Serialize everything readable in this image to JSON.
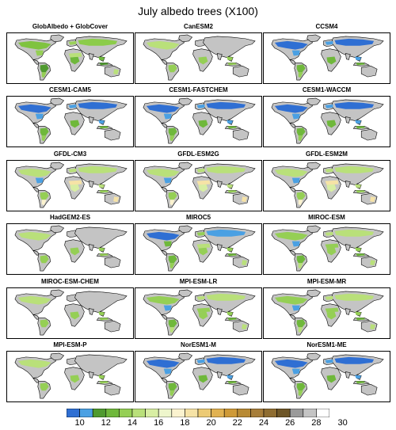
{
  "title": "July albedo trees (X100)",
  "panels": [
    {
      "label": "GlobAlbedo + GlobCover",
      "scheme": "obs"
    },
    {
      "label": "CanESM2",
      "scheme": "sparse"
    },
    {
      "label": "CCSM4",
      "scheme": "blue"
    },
    {
      "label": "CESM1-CAM5",
      "scheme": "blue"
    },
    {
      "label": "CESM1-FASTCHEM",
      "scheme": "blue"
    },
    {
      "label": "CESM1-WACCM",
      "scheme": "blue"
    },
    {
      "label": "GFDL-CM3",
      "scheme": "yellow"
    },
    {
      "label": "GFDL-ESM2G",
      "scheme": "yellow"
    },
    {
      "label": "GFDL-ESM2M",
      "scheme": "yellow"
    },
    {
      "label": "HadGEM2-ES",
      "scheme": "sparse"
    },
    {
      "label": "MIROC5",
      "scheme": "mixed"
    },
    {
      "label": "MIROC-ESM",
      "scheme": "green"
    },
    {
      "label": "MIROC-ESM-CHEM",
      "scheme": "sparse"
    },
    {
      "label": "MPI-ESM-LR",
      "scheme": "green"
    },
    {
      "label": "MPI-ESM-MR",
      "scheme": "green"
    },
    {
      "label": "MPI-ESM-P",
      "scheme": "sparse"
    },
    {
      "label": "NorESM1-M",
      "scheme": "blue"
    },
    {
      "label": "NorESM1-ME",
      "scheme": "blue"
    }
  ],
  "colorbar": {
    "colors": [
      "#2f6fd3",
      "#4aa0e3",
      "#4f9a2f",
      "#6fb83b",
      "#95cf55",
      "#b9e07a",
      "#d8eea3",
      "#eef6cc",
      "#fbf3cf",
      "#f6e3a6",
      "#ecca74",
      "#e1b251",
      "#cf9a37",
      "#b88a33",
      "#a77e3a",
      "#8f6d31",
      "#6e5627",
      "#9a9a9a",
      "#c4c4c4",
      "#ffffff"
    ],
    "tick_labels": [
      "10",
      "12",
      "14",
      "16",
      "18",
      "20",
      "22",
      "24",
      "26",
      "28",
      "30"
    ]
  }
}
